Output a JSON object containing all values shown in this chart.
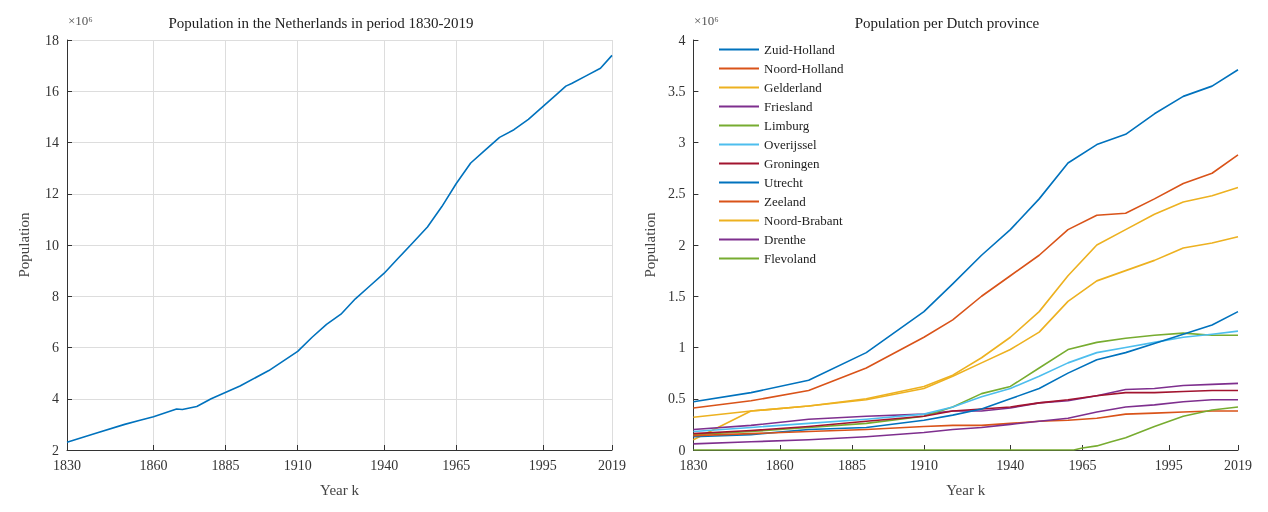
{
  "chart_data": [
    {
      "type": "line",
      "title": "Population in the Netherlands in period 1830-2019",
      "xlabel": "Year k",
      "ylabel": "Population",
      "annotations": [
        "×10⁶"
      ],
      "xlim": [
        1830,
        2019
      ],
      "xticks": [
        1830,
        1860,
        1885,
        1910,
        1940,
        1965,
        1995,
        2019
      ],
      "ylim": [
        2,
        18
      ],
      "yticks": [
        2,
        4,
        6,
        8,
        10,
        12,
        14,
        16,
        18
      ],
      "grid": true,
      "legend": false,
      "x": [
        1830,
        1840,
        1850,
        1855,
        1860,
        1868,
        1870,
        1875,
        1880,
        1890,
        1900,
        1910,
        1915,
        1920,
        1925,
        1930,
        1935,
        1940,
        1945,
        1950,
        1955,
        1960,
        1965,
        1970,
        1975,
        1980,
        1985,
        1990,
        1995,
        2000,
        2003,
        2005,
        2010,
        2015,
        2019
      ],
      "series": [
        {
          "color": "#0072bd",
          "values": [
            2.3,
            2.65,
            3.0,
            3.15,
            3.3,
            3.6,
            3.58,
            3.7,
            4.0,
            4.5,
            5.1,
            5.85,
            6.4,
            6.9,
            7.3,
            7.9,
            8.4,
            8.9,
            9.5,
            10.1,
            10.7,
            11.5,
            12.4,
            13.2,
            13.7,
            14.2,
            14.5,
            14.9,
            15.4,
            15.9,
            16.2,
            16.3,
            16.6,
            16.9,
            17.4
          ]
        }
      ]
    },
    {
      "type": "line",
      "title": "Population per Dutch province",
      "xlabel": "Year k",
      "ylabel": "Population",
      "annotations": [
        "×10⁶"
      ],
      "xlim": [
        1830,
        2019
      ],
      "xticks": [
        1830,
        1860,
        1885,
        1910,
        1940,
        1965,
        1995,
        2019
      ],
      "ylim": [
        0,
        4
      ],
      "yticks": [
        0,
        0.5,
        1,
        1.5,
        2,
        2.5,
        3,
        3.5,
        4
      ],
      "grid": false,
      "legend": "top left",
      "x": [
        1830,
        1850,
        1870,
        1890,
        1910,
        1920,
        1930,
        1940,
        1950,
        1960,
        1970,
        1980,
        1990,
        2000,
        2010,
        2019
      ],
      "series": [
        {
          "name": "Zuid-Holland",
          "color": "#0072bd",
          "values": [
            0.47,
            0.56,
            0.68,
            0.95,
            1.35,
            1.62,
            1.9,
            2.15,
            2.45,
            2.8,
            2.98,
            3.08,
            3.28,
            3.45,
            3.55,
            3.71
          ]
        },
        {
          "name": "Noord-Holland",
          "color": "#d95319",
          "values": [
            0.41,
            0.48,
            0.58,
            0.8,
            1.1,
            1.27,
            1.5,
            1.7,
            1.9,
            2.15,
            2.29,
            2.31,
            2.45,
            2.6,
            2.7,
            2.88
          ]
        },
        {
          "name": "Gelderland",
          "color": "#edb120",
          "values": [
            0.1,
            0.38,
            0.43,
            0.49,
            0.6,
            0.72,
            0.85,
            0.98,
            1.15,
            1.45,
            1.65,
            1.75,
            1.85,
            1.97,
            2.02,
            2.08
          ]
        },
        {
          "name": "Friesland",
          "color": "#7e2f8e",
          "values": [
            0.2,
            0.24,
            0.3,
            0.33,
            0.35,
            0.38,
            0.38,
            0.41,
            0.46,
            0.48,
            0.53,
            0.59,
            0.6,
            0.63,
            0.64,
            0.65
          ]
        },
        {
          "name": "Limburg",
          "color": "#77ac30",
          "values": [
            0.15,
            0.18,
            0.22,
            0.26,
            0.33,
            0.42,
            0.55,
            0.62,
            0.8,
            0.98,
            1.05,
            1.09,
            1.12,
            1.14,
            1.12,
            1.12
          ]
        },
        {
          "name": "Overijssel",
          "color": "#4dbeee",
          "values": [
            0.18,
            0.22,
            0.26,
            0.3,
            0.35,
            0.42,
            0.52,
            0.6,
            0.72,
            0.85,
            0.95,
            1.0,
            1.05,
            1.1,
            1.13,
            1.16
          ]
        },
        {
          "name": "Groningen",
          "color": "#a2142f",
          "values": [
            0.16,
            0.19,
            0.23,
            0.28,
            0.33,
            0.38,
            0.4,
            0.42,
            0.46,
            0.49,
            0.53,
            0.56,
            0.56,
            0.57,
            0.58,
            0.58
          ]
        },
        {
          "name": "Utrecht",
          "color": "#0072bd",
          "values": [
            0.13,
            0.15,
            0.2,
            0.22,
            0.29,
            0.34,
            0.4,
            0.5,
            0.6,
            0.75,
            0.88,
            0.95,
            1.04,
            1.13,
            1.22,
            1.35
          ]
        },
        {
          "name": "Zeeland",
          "color": "#d95319",
          "values": [
            0.14,
            0.16,
            0.18,
            0.2,
            0.23,
            0.24,
            0.24,
            0.26,
            0.28,
            0.29,
            0.31,
            0.35,
            0.36,
            0.37,
            0.38,
            0.38
          ]
        },
        {
          "name": "Noord-Brabant",
          "color": "#edb120",
          "values": [
            0.32,
            0.38,
            0.43,
            0.5,
            0.62,
            0.73,
            0.9,
            1.1,
            1.35,
            1.7,
            2.0,
            2.15,
            2.3,
            2.42,
            2.48,
            2.56
          ]
        },
        {
          "name": "Drenthe",
          "color": "#7e2f8e",
          "values": [
            0.06,
            0.08,
            0.1,
            0.13,
            0.17,
            0.2,
            0.22,
            0.25,
            0.28,
            0.31,
            0.37,
            0.42,
            0.44,
            0.47,
            0.49,
            0.49
          ]
        },
        {
          "name": "Flevoland",
          "color": "#77ac30",
          "x": [
            1830,
            1962,
            1965,
            1970,
            1975,
            1980,
            1990,
            2000,
            2010,
            2019
          ],
          "values": [
            0,
            0,
            0.02,
            0.04,
            0.08,
            0.12,
            0.23,
            0.33,
            0.39,
            0.42
          ]
        }
      ]
    }
  ]
}
